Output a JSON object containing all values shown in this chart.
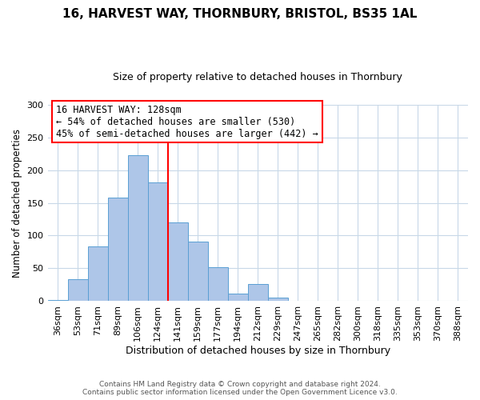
{
  "title": "16, HARVEST WAY, THORNBURY, BRISTOL, BS35 1AL",
  "subtitle": "Size of property relative to detached houses in Thornbury",
  "xlabel": "Distribution of detached houses by size in Thornbury",
  "ylabel": "Number of detached properties",
  "bar_labels": [
    "36sqm",
    "53sqm",
    "71sqm",
    "89sqm",
    "106sqm",
    "124sqm",
    "141sqm",
    "159sqm",
    "177sqm",
    "194sqm",
    "212sqm",
    "229sqm",
    "247sqm",
    "265sqm",
    "282sqm",
    "300sqm",
    "318sqm",
    "335sqm",
    "353sqm",
    "370sqm",
    "388sqm"
  ],
  "bar_values": [
    2,
    33,
    83,
    158,
    222,
    181,
    120,
    91,
    52,
    11,
    26,
    6,
    0,
    0,
    0,
    0,
    0,
    1,
    0,
    0,
    1
  ],
  "bar_color": "#aec6e8",
  "bar_edge_color": "#5a9fd4",
  "vline_position": 5.5,
  "vline_color": "red",
  "ylim": [
    0,
    300
  ],
  "yticks": [
    0,
    50,
    100,
    150,
    200,
    250,
    300
  ],
  "annotation_title": "16 HARVEST WAY: 128sqm",
  "annotation_line1": "← 54% of detached houses are smaller (530)",
  "annotation_line2": "45% of semi-detached houses are larger (442) →",
  "annotation_box_color": "#ffffff",
  "annotation_box_edge": "red",
  "footer1": "Contains HM Land Registry data © Crown copyright and database right 2024.",
  "footer2": "Contains public sector information licensed under the Open Government Licence v3.0.",
  "bg_color": "#ffffff",
  "grid_color": "#c8d8e8"
}
